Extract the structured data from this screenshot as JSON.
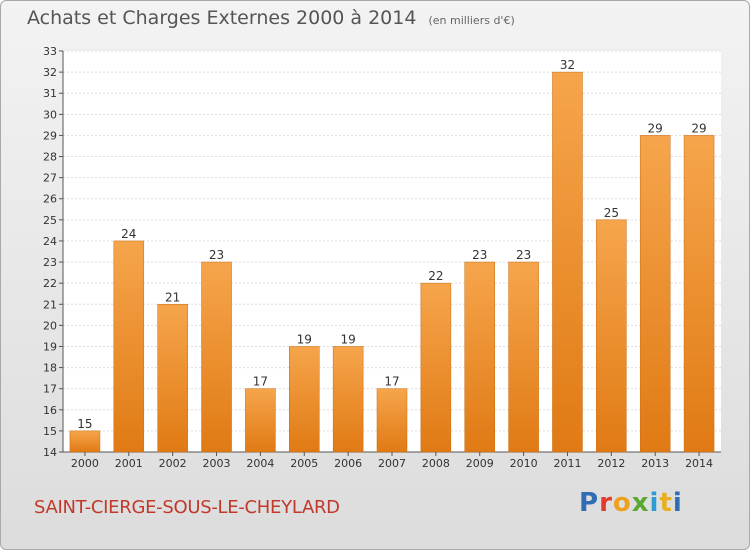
{
  "header": {
    "title": "Achats et Charges Externes 2000 à 2014",
    "subtitle": "(en milliers d'€)"
  },
  "footer": {
    "city": "SAINT-CIERGE-SOUS-LE-CHEYLARD",
    "logo": [
      "P",
      "r",
      "o",
      "x",
      "i",
      "t",
      "i"
    ]
  },
  "colors": {
    "bar_top": "#f6a54c",
    "bar_bottom": "#e07a14",
    "city_text": "#c0392b"
  },
  "chart_data": {
    "type": "bar",
    "categories": [
      "2000",
      "2001",
      "2002",
      "2003",
      "2004",
      "2005",
      "2006",
      "2007",
      "2008",
      "2009",
      "2010",
      "2011",
      "2012",
      "2013",
      "2014"
    ],
    "values": [
      15,
      24,
      21,
      23,
      17,
      19,
      19,
      17,
      22,
      23,
      23,
      32,
      25,
      29,
      29
    ],
    "ylim": [
      14,
      33
    ],
    "yticks": [
      14,
      15,
      16,
      17,
      18,
      19,
      20,
      21,
      22,
      23,
      24,
      25,
      26,
      27,
      28,
      29,
      30,
      31,
      32,
      33
    ],
    "grid": true,
    "data_labels": true
  }
}
